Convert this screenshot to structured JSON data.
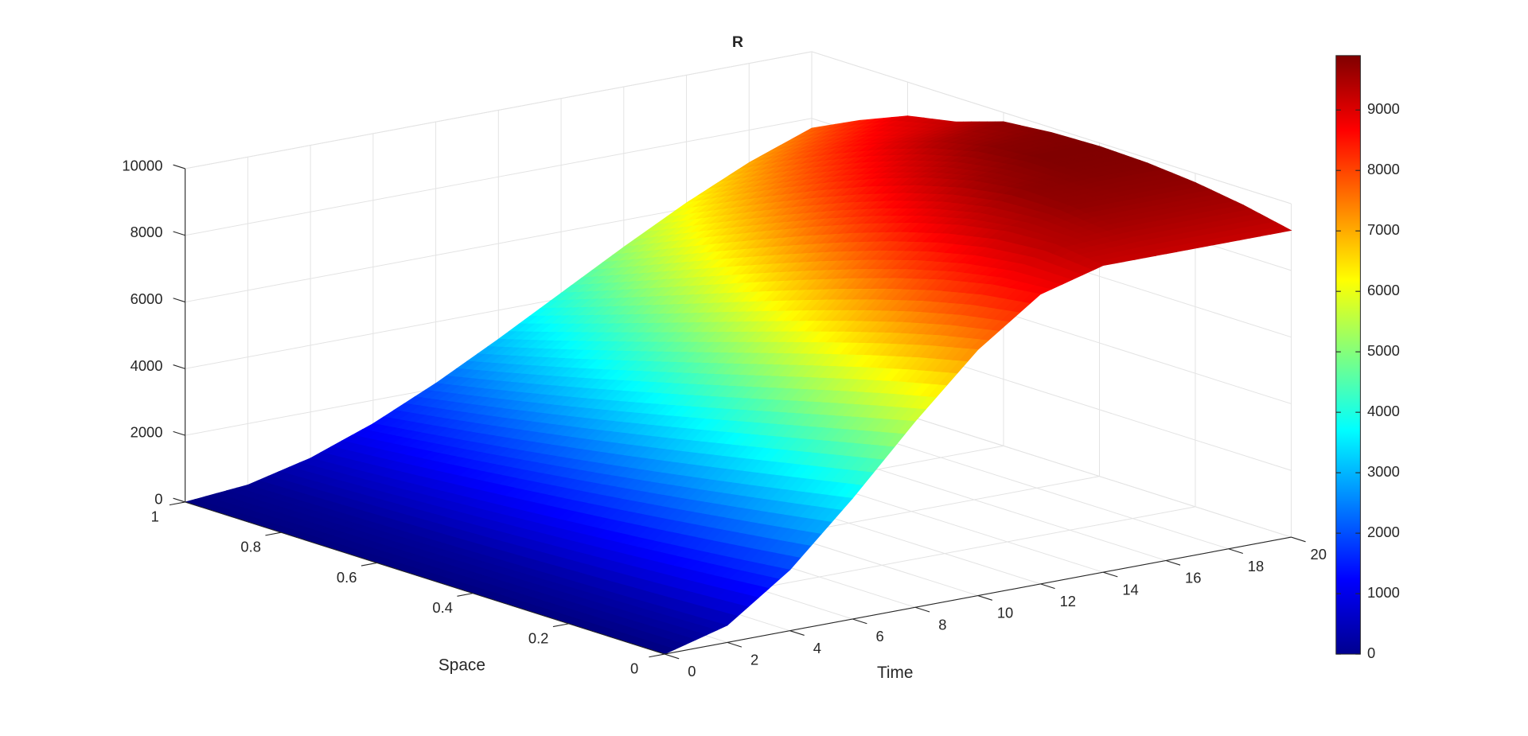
{
  "chart_data": {
    "type": "surface",
    "title": "R",
    "xlabel": "Time",
    "ylabel": "Space",
    "x": [
      0,
      2,
      4,
      6,
      8,
      10,
      12,
      14,
      16,
      18,
      20
    ],
    "y": [
      0,
      0.1,
      0.2,
      0.3,
      0.4,
      0.5,
      0.6,
      0.7,
      0.8,
      0.9,
      1
    ],
    "z": [
      [
        0,
        510,
        1824,
        3621,
        5579,
        7376,
        8690,
        9200,
        9200,
        9200,
        9200
      ],
      [
        0,
        462,
        1667,
        3346,
        5227,
        7041,
        8517,
        9384,
        9506,
        9506,
        9506
      ],
      [
        0,
        418,
        1520,
        3077,
        4863,
        6648,
        8205,
        9307,
        9725,
        9725,
        9725
      ],
      [
        0,
        377,
        1380,
        2817,
        4494,
        6219,
        7799,
        9044,
        9757,
        9856,
        9856
      ],
      [
        0,
        340,
        1249,
        2567,
        4128,
        5772,
        7333,
        8651,
        9560,
        9900,
        9900
      ],
      [
        0,
        305,
        1127,
        2328,
        3771,
        5316,
        6828,
        8168,
        9197,
        9777,
        9856
      ],
      [
        0,
        272,
        1011,
        2101,
        3423,
        4863,
        6302,
        7624,
        8714,
        9453,
        9725
      ],
      [
        0,
        242,
        903,
        1885,
        3088,
        4414,
        5764,
        7041,
        8146,
        8979,
        9264
      ],
      [
        0,
        214,
        802,
        1680,
        2765,
        3974,
        5226,
        6435,
        7520,
        8398,
        8986
      ],
      [
        0,
        188,
        706,
        1486,
        2455,
        3546,
        4689,
        5815,
        6856,
        7738,
        8396
      ],
      [
        0,
        164,
        617,
        1301,
        2159,
        3132,
        4163,
        5193,
        6166,
        7024,
        7708
      ]
    ],
    "xlim": [
      0,
      20
    ],
    "ylim": [
      0,
      1
    ],
    "zlim": [
      0,
      10000
    ],
    "xticks": [
      0,
      2,
      4,
      6,
      8,
      10,
      12,
      14,
      16,
      18,
      20
    ],
    "yticks": [
      0,
      0.2,
      0.4,
      0.6,
      0.8,
      1
    ],
    "zticks": [
      0,
      2000,
      4000,
      6000,
      8000,
      10000
    ],
    "colormap": "jet",
    "grid": true,
    "colorbar": {
      "clim": [
        0,
        9900
      ],
      "ticks": [
        0,
        1000,
        2000,
        3000,
        4000,
        5000,
        6000,
        7000,
        8000,
        9000
      ]
    }
  }
}
